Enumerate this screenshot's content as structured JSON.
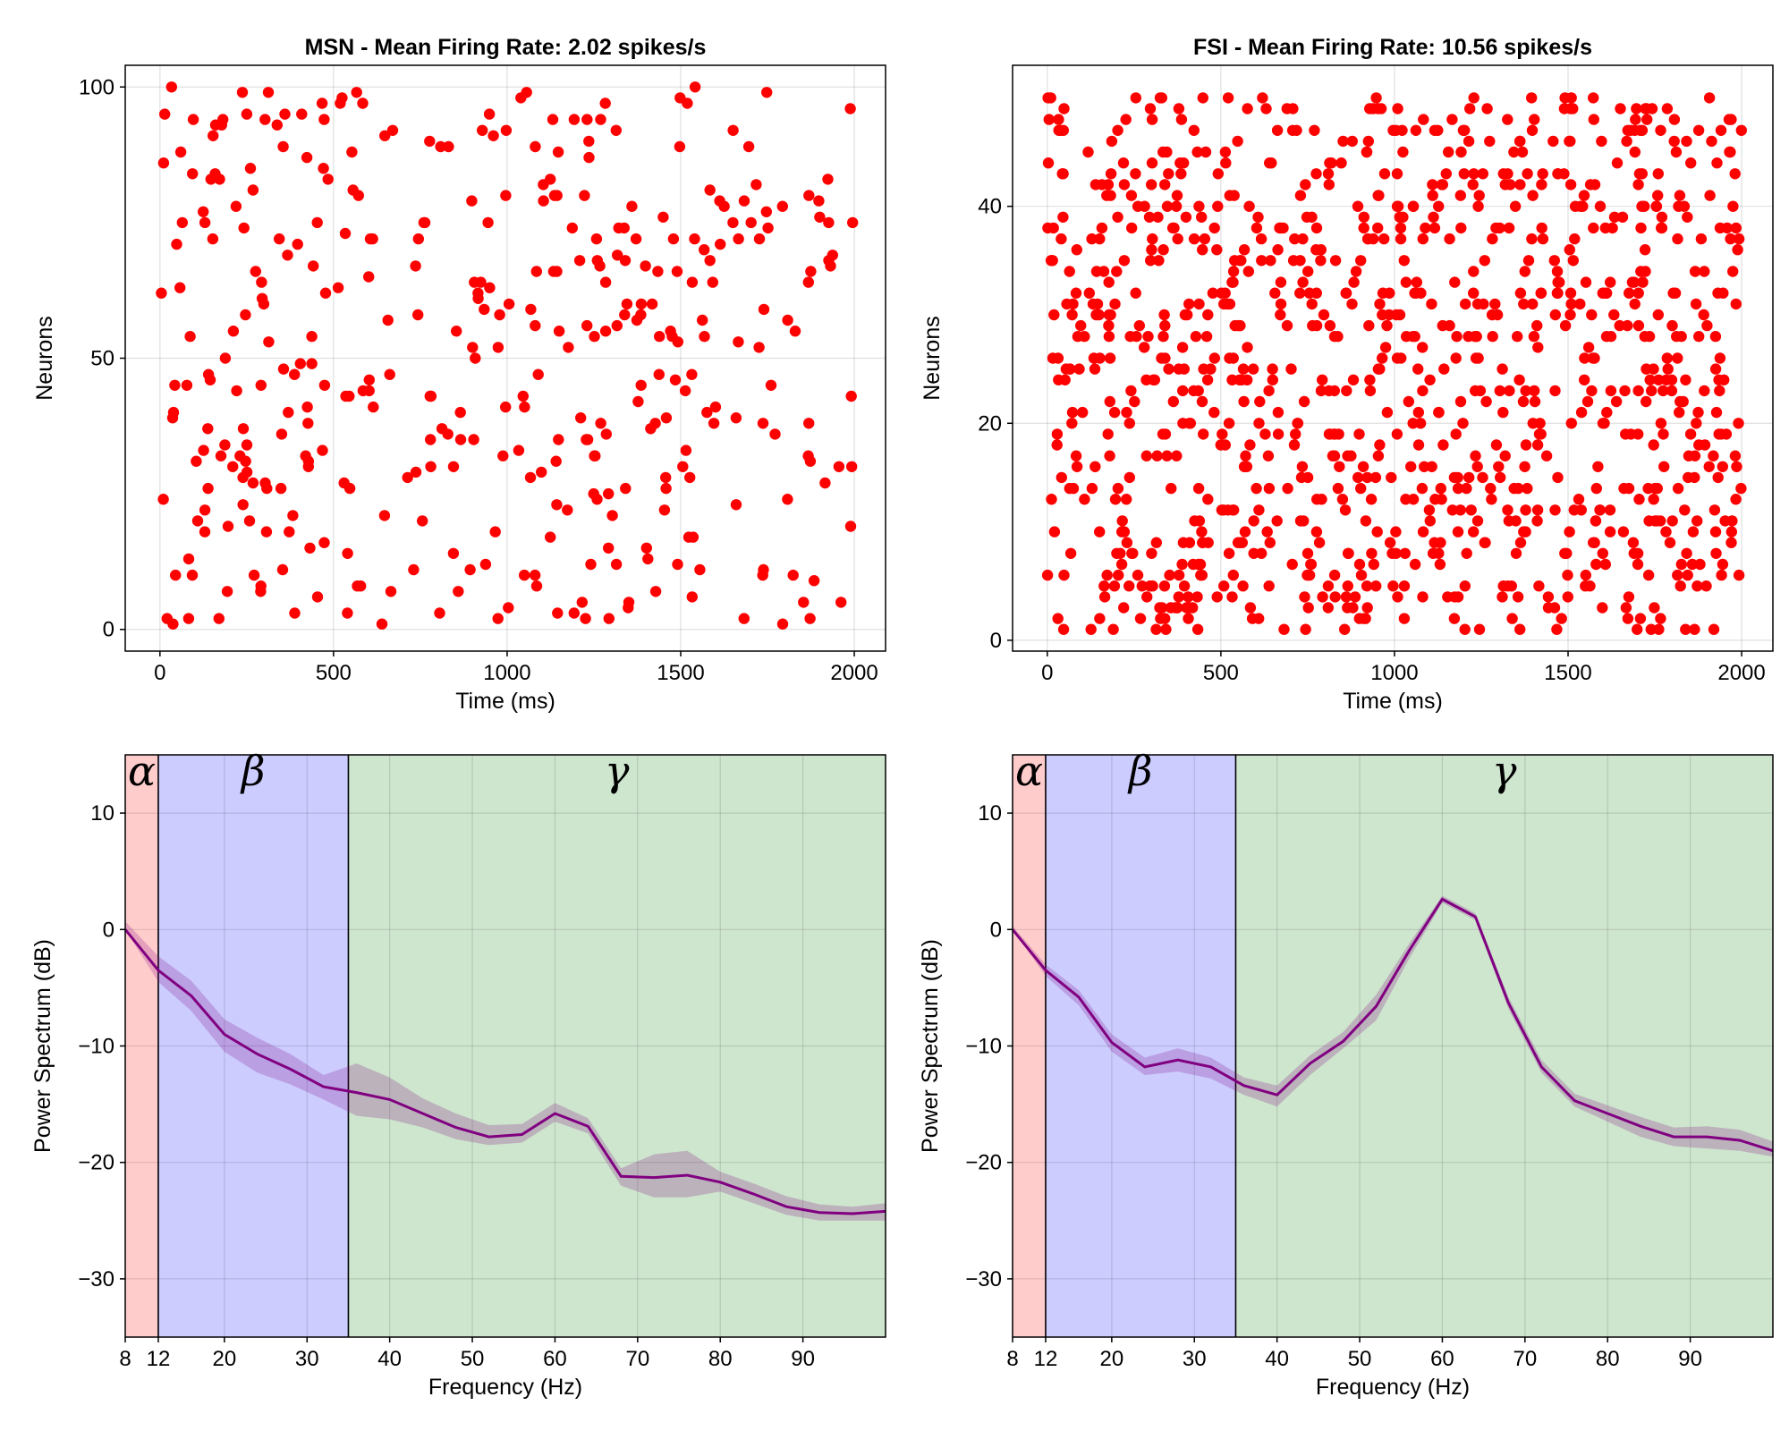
{
  "chart_data": [
    {
      "panel": "msn-raster",
      "type": "scatter",
      "title": "MSN - Mean Firing Rate: 2.02 spikes/s",
      "xlabel": "Time (ms)",
      "ylabel": "Neurons",
      "xlim": [
        -100,
        2090
      ],
      "ylim": [
        -4,
        104
      ],
      "xticks": [
        0,
        500,
        1000,
        1500,
        2000
      ],
      "yticks": [
        0,
        50,
        100
      ],
      "grid": true,
      "marker_color": "#ff0000",
      "n_neurons": 100,
      "mean_rate": 2.02,
      "duration_ms": 2000
    },
    {
      "panel": "fsi-raster",
      "type": "scatter",
      "title": "FSI - Mean Firing Rate: 10.56 spikes/s",
      "xlabel": "Time (ms)",
      "ylabel": "Neurons",
      "xlim": [
        -100,
        2090
      ],
      "ylim": [
        -1,
        53
      ],
      "xticks": [
        0,
        500,
        1000,
        1500,
        2000
      ],
      "yticks": [
        0,
        20,
        40
      ],
      "grid": true,
      "marker_color": "#ff0000",
      "n_neurons": 50,
      "mean_rate": 10.56,
      "duration_ms": 2000
    },
    {
      "panel": "msn-spectrum",
      "type": "line",
      "xlabel": "Frequency (Hz)",
      "ylabel": "Power Spectrum (dB)",
      "xlim": [
        8,
        100
      ],
      "ylim": [
        -35,
        15
      ],
      "xticks": [
        8,
        12,
        20,
        30,
        40,
        50,
        60,
        70,
        80,
        90
      ],
      "yticks": [
        -30,
        -20,
        -10,
        0,
        10
      ],
      "grid": true,
      "line_color": "#800080",
      "band_color": "#800080",
      "bands": [
        {
          "label": "α",
          "from": 8,
          "to": 12,
          "color": "#ff8080"
        },
        {
          "label": "β",
          "from": 12,
          "to": 35,
          "color": "#8080ff"
        },
        {
          "label": "γ",
          "from": 35,
          "to": 100,
          "color": "#77b877"
        }
      ],
      "x": [
        8,
        12,
        16,
        20,
        24,
        28,
        32,
        36,
        40,
        44,
        48,
        52,
        56,
        60,
        64,
        68,
        72,
        76,
        80,
        84,
        88,
        92,
        96,
        100
      ],
      "y": [
        0.0,
        -3.5,
        -5.7,
        -9.0,
        -10.7,
        -12.0,
        -13.5,
        -14.0,
        -14.6,
        -15.8,
        -17.0,
        -17.8,
        -17.6,
        -15.8,
        -16.9,
        -21.2,
        -21.3,
        -21.1,
        -21.7,
        -22.7,
        -23.8,
        -24.3,
        -24.4,
        -24.2
      ],
      "y_low": [
        0.0,
        -4.5,
        -7.0,
        -10.5,
        -12.3,
        -13.3,
        -14.6,
        -16.0,
        -16.3,
        -17.0,
        -18.0,
        -18.5,
        -18.3,
        -16.5,
        -17.5,
        -22.0,
        -23.0,
        -23.0,
        -22.5,
        -23.5,
        -24.5,
        -25.0,
        -25.0,
        -25.0
      ],
      "y_high": [
        0.7,
        -2.3,
        -4.4,
        -7.7,
        -9.3,
        -10.7,
        -12.5,
        -11.5,
        -12.7,
        -14.5,
        -15.8,
        -16.8,
        -16.7,
        -14.9,
        -16.2,
        -20.5,
        -19.3,
        -19.0,
        -20.8,
        -21.8,
        -22.9,
        -23.6,
        -23.8,
        -23.5
      ]
    },
    {
      "panel": "fsi-spectrum",
      "type": "line",
      "xlabel": "Frequency (Hz)",
      "ylabel": "Power Spectrum (dB)",
      "xlim": [
        8,
        100
      ],
      "ylim": [
        -35,
        15
      ],
      "xticks": [
        8,
        12,
        20,
        30,
        40,
        50,
        60,
        70,
        80,
        90
      ],
      "yticks": [
        -30,
        -20,
        -10,
        0,
        10
      ],
      "grid": true,
      "line_color": "#800080",
      "band_color": "#800080",
      "bands": [
        {
          "label": "α",
          "from": 8,
          "to": 12,
          "color": "#ff8080"
        },
        {
          "label": "β",
          "from": 12,
          "to": 35,
          "color": "#8080ff"
        },
        {
          "label": "γ",
          "from": 35,
          "to": 100,
          "color": "#77b877"
        }
      ],
      "x": [
        8,
        12,
        16,
        20,
        24,
        28,
        32,
        36,
        40,
        44,
        48,
        52,
        56,
        60,
        64,
        68,
        72,
        76,
        80,
        84,
        88,
        92,
        96,
        100
      ],
      "y": [
        0.0,
        -3.5,
        -5.8,
        -9.7,
        -11.8,
        -11.2,
        -11.8,
        -13.4,
        -14.2,
        -11.5,
        -9.6,
        -6.6,
        -1.8,
        2.6,
        1.1,
        -6.3,
        -11.8,
        -14.7,
        -15.8,
        -16.9,
        -17.8,
        -17.8,
        -18.1,
        -19.0
      ],
      "y_low": [
        0.0,
        -4.0,
        -6.5,
        -10.5,
        -12.5,
        -12.2,
        -12.8,
        -14.2,
        -15.2,
        -12.5,
        -10.2,
        -7.8,
        -2.5,
        2.3,
        0.8,
        -6.8,
        -12.3,
        -15.2,
        -16.5,
        -17.8,
        -18.6,
        -18.8,
        -19.0,
        -19.5
      ],
      "y_high": [
        0.3,
        -3.0,
        -5.2,
        -9.0,
        -11.0,
        -10.2,
        -11.0,
        -12.7,
        -13.4,
        -10.8,
        -8.8,
        -5.6,
        -1.2,
        2.9,
        1.4,
        -5.8,
        -11.2,
        -14.1,
        -15.1,
        -16.1,
        -17.0,
        -16.9,
        -17.2,
        -18.2
      ]
    }
  ]
}
